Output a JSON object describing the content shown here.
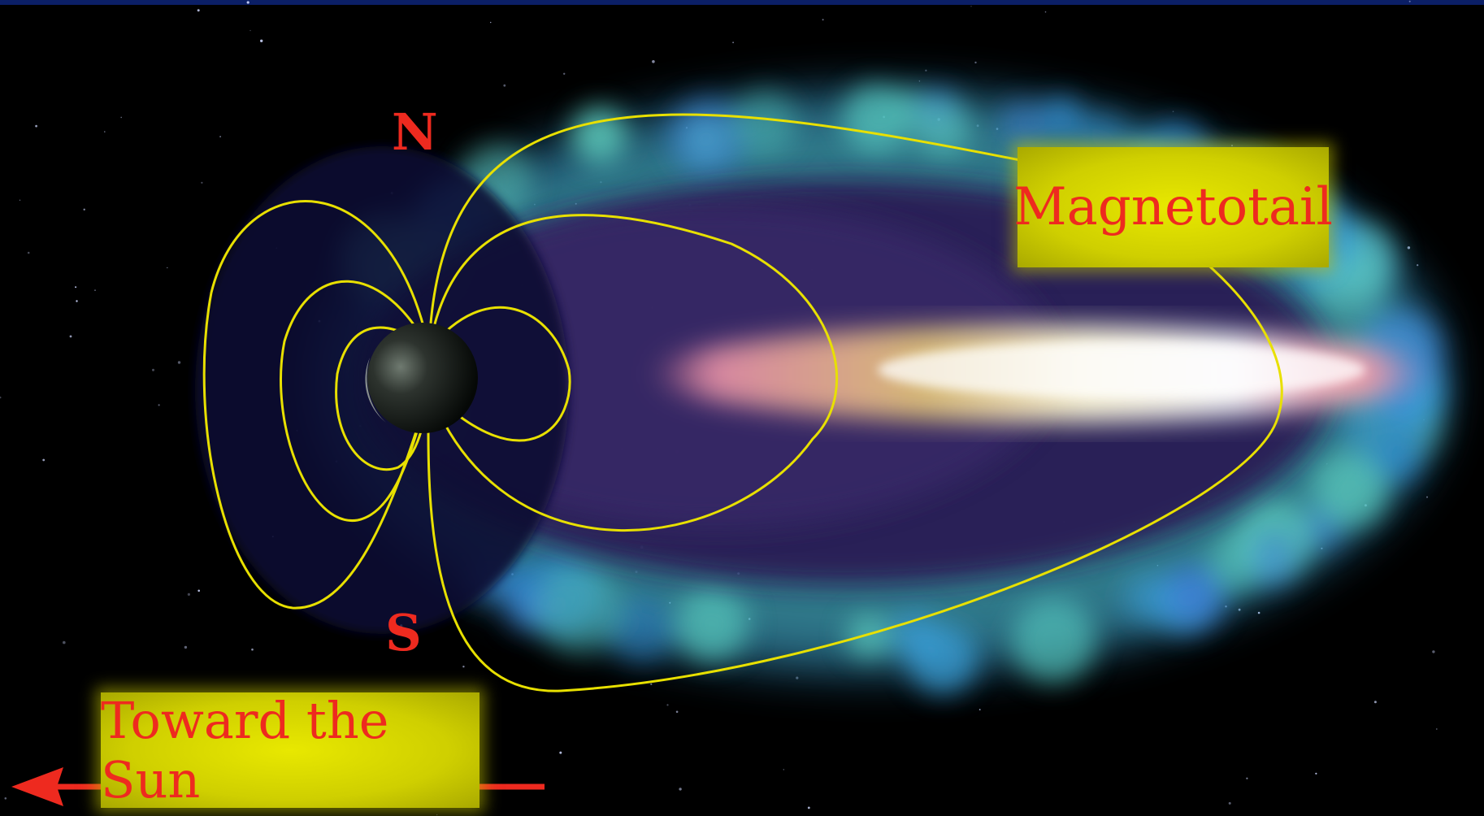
{
  "labels": {
    "magnetotail": "Magnetotail",
    "toward_sun": "Toward the Sun",
    "north_pole": "N",
    "south_pole": "S"
  },
  "colors": {
    "background": "#000000",
    "field_lines": "#e8e000",
    "label_text": "#ee2a1f",
    "label_box": "#d8d800",
    "arrow": "#ee2a1f",
    "plasma_outer": "#3fa6d8",
    "plasma_inner": "#2a1a55",
    "plasma_sheet": "#fff7c0"
  },
  "icons": {
    "planet": "earth-sphere-icon",
    "arrow": "arrow-left-icon"
  }
}
